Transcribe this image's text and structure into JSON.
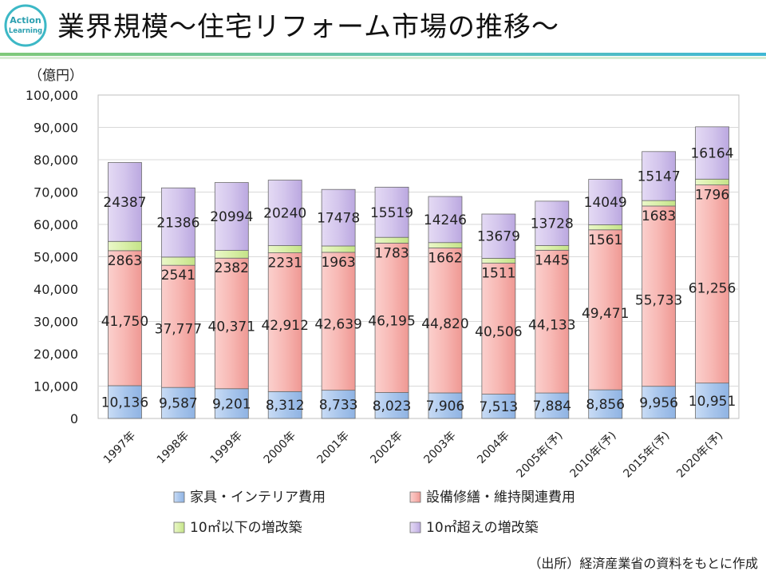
{
  "header": {
    "logo_line1": "Action",
    "logo_line2": "Learning",
    "title": "業界規模～住宅リフォーム市場の推移～"
  },
  "footer": {
    "source": "（出所）経済産業省の資料をもとに作成"
  },
  "chart_data": {
    "type": "bar",
    "stacked": true,
    "unit_label": "（億円）",
    "ylim": [
      0,
      100000
    ],
    "yticks": [
      0,
      10000,
      20000,
      30000,
      40000,
      50000,
      60000,
      70000,
      80000,
      90000,
      100000
    ],
    "ytick_labels": [
      "0",
      "10,000",
      "20,000",
      "30,000",
      "40,000",
      "50,000",
      "60,000",
      "70,000",
      "80,000",
      "90,000",
      "100,000"
    ],
    "grid": true,
    "categories": [
      "1997年",
      "1998年",
      "1999年",
      "2000年",
      "2001年",
      "2002年",
      "2003年",
      "2004年",
      "2005年(予)",
      "2010年(予)",
      "2015年(予)",
      "2020年(予)"
    ],
    "series": [
      {
        "name": "家具・インテリア費用",
        "color": "#a9c6ec",
        "values": [
          10136,
          9587,
          9201,
          8312,
          8733,
          8023,
          7906,
          7513,
          7884,
          8856,
          9956,
          10951
        ],
        "labels": [
          "10,136",
          "9,587",
          "9,201",
          "8,312",
          "8,733",
          "8,023",
          "7,906",
          "7,513",
          "7,884",
          "8,856",
          "9,956",
          "10,951"
        ]
      },
      {
        "name": "設備修繕・維持関連費用",
        "color": "#f4a7a3",
        "values": [
          41750,
          37777,
          40371,
          42912,
          42639,
          46195,
          44820,
          40506,
          44133,
          49471,
          55733,
          61256
        ],
        "labels": [
          "41,750",
          "37,777",
          "40,371",
          "42,912",
          "42,639",
          "46,195",
          "44,820",
          "40,506",
          "44,133",
          "49,471",
          "55,733",
          "61,256"
        ]
      },
      {
        "name": "10㎡以下の増改築",
        "color": "#d9efa8",
        "values": [
          2863,
          2541,
          2382,
          2231,
          1963,
          1783,
          1662,
          1511,
          1445,
          1561,
          1683,
          1796
        ],
        "labels": [
          "2863",
          "2541",
          "2382",
          "2231",
          "1963",
          "1783",
          "1662",
          "1511",
          "1445",
          "1561",
          "1683",
          "1796"
        ]
      },
      {
        "name": "10㎡超えの増改築",
        "color": "#cdbde8",
        "values": [
          24387,
          21386,
          20994,
          20240,
          17478,
          15519,
          14246,
          13679,
          13728,
          14049,
          15147,
          16164
        ],
        "labels": [
          "24387",
          "21386",
          "20994",
          "20240",
          "17478",
          "15519",
          "14246",
          "13679",
          "13728",
          "14049",
          "15147",
          "16164"
        ]
      }
    ],
    "legend_position": "bottom"
  }
}
